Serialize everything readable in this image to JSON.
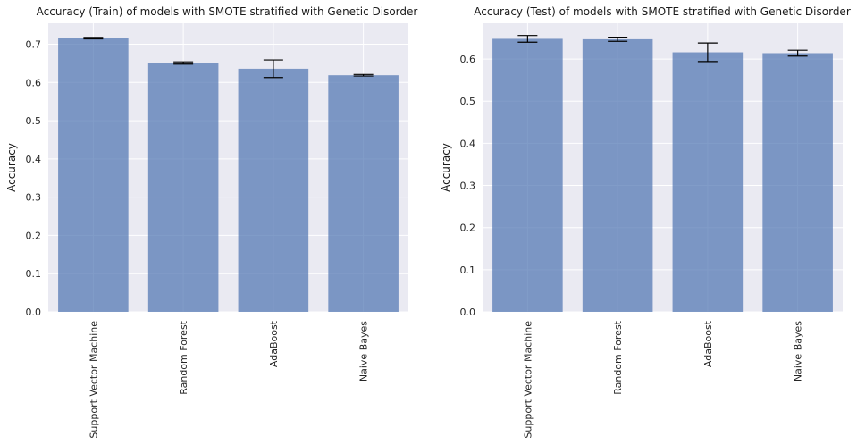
{
  "chart_data": [
    {
      "type": "bar",
      "title": "Accuracy (Train) of models with SMOTE stratified with Genetic Disorder",
      "xlabel": "",
      "ylabel": "Accuracy",
      "categories": [
        "Support Vector Machine",
        "Random Forest",
        "AdaBoost",
        "Naive Bayes"
      ],
      "values": [
        0.716,
        0.651,
        0.636,
        0.619
      ],
      "errors": [
        0.002,
        0.003,
        0.023,
        0.002
      ],
      "ylim": [
        0,
        0.755
      ],
      "yticks": [
        0.0,
        0.1,
        0.2,
        0.3,
        0.4,
        0.5,
        0.6,
        0.7
      ],
      "ytick_labels": [
        "0.0",
        "0.1",
        "0.2",
        "0.3",
        "0.4",
        "0.5",
        "0.6",
        "0.7"
      ],
      "grid": true,
      "colors": {
        "bar": "#4c72b0",
        "background": "#eaeaf2"
      }
    },
    {
      "type": "bar",
      "title": "Accuracy (Test) of models with SMOTE stratified with Genetic Disorder",
      "xlabel": "",
      "ylabel": "Accuracy",
      "categories": [
        "Support Vector Machine",
        "Random Forest",
        "AdaBoost",
        "Naive Bayes"
      ],
      "values": [
        0.648,
        0.647,
        0.616,
        0.614
      ],
      "errors": [
        0.008,
        0.005,
        0.022,
        0.007
      ],
      "ylim": [
        0,
        0.685
      ],
      "yticks": [
        0.0,
        0.1,
        0.2,
        0.3,
        0.4,
        0.5,
        0.6
      ],
      "ytick_labels": [
        "0.0",
        "0.1",
        "0.2",
        "0.3",
        "0.4",
        "0.5",
        "0.6"
      ],
      "grid": true,
      "colors": {
        "bar": "#4c72b0",
        "background": "#eaeaf2"
      }
    }
  ]
}
